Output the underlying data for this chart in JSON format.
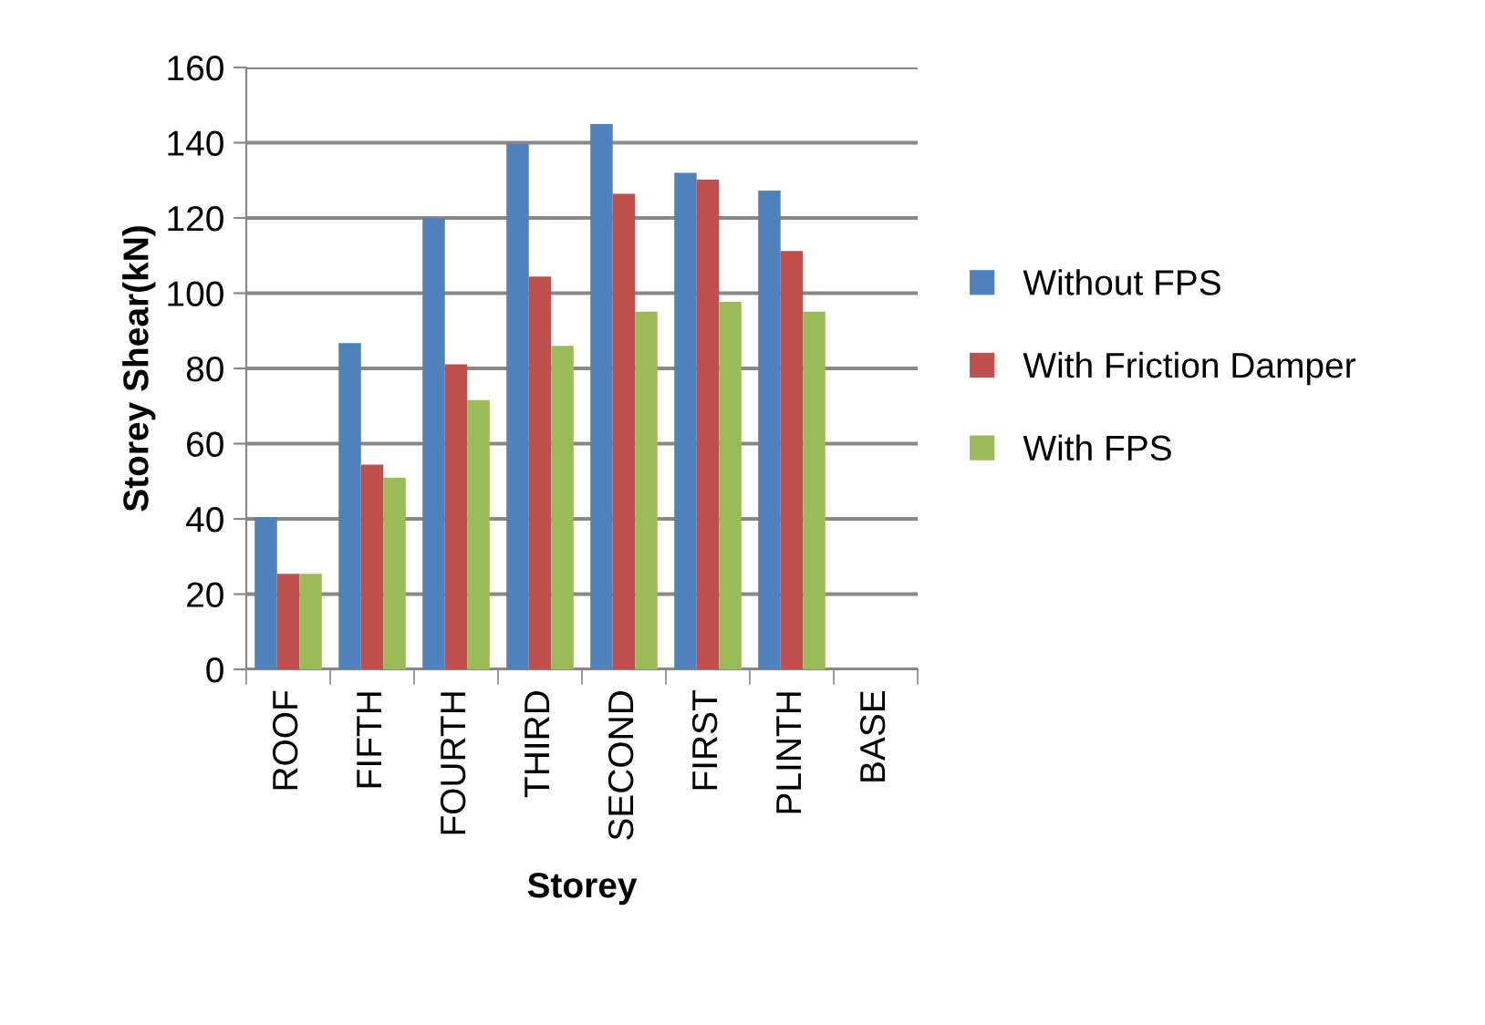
{
  "chart_data": {
    "type": "bar",
    "xlabel": "Storey",
    "ylabel": "Storey Shear(kN)",
    "categories": [
      "ROOF",
      "FIFTH",
      "FOURTH",
      "THIRD",
      "SECOND",
      "FIRST",
      "PLINTH",
      "BASE"
    ],
    "series": [
      {
        "name": "Without FPS",
        "color": "#4f81bd",
        "values": [
          40.5,
          86.7,
          120,
          139.7,
          145,
          132,
          127.3,
          null
        ]
      },
      {
        "name": "With Friction Damper",
        "color": "#c0504d",
        "values": [
          25.4,
          54.4,
          81.1,
          104.4,
          126.4,
          130.2,
          111.2,
          null
        ]
      },
      {
        "name": "With FPS",
        "color": "#9bbb59",
        "values": [
          25.4,
          51,
          71.6,
          86,
          95.1,
          97.7,
          95.1,
          null
        ]
      }
    ],
    "ylim": [
      0,
      160
    ],
    "yticks": [
      0,
      20,
      40,
      60,
      80,
      100,
      120,
      140,
      160
    ],
    "grid": "y",
    "legend": "right"
  }
}
